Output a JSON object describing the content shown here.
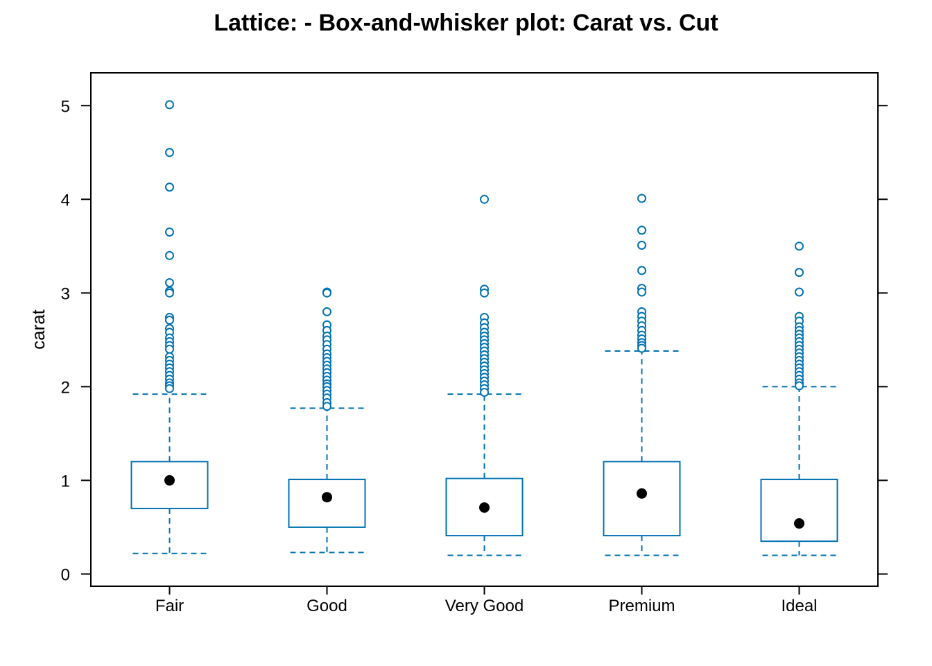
{
  "chart_data": {
    "type": "boxplot",
    "title": "Lattice: - Box-and-whisker plot: Carat vs. Cut",
    "xlabel": "",
    "ylabel": "carat",
    "ylim": [
      -0.13,
      5.35
    ],
    "yticks": [
      0,
      1,
      2,
      3,
      4,
      5
    ],
    "grid": false,
    "color": "#0072B2",
    "median_color": "#000000",
    "categories": [
      "Fair",
      "Good",
      "Very Good",
      "Premium",
      "Ideal"
    ],
    "boxes": [
      {
        "category": "Fair",
        "whisker_low": 0.22,
        "q1": 0.7,
        "median": 1.0,
        "q3": 1.2,
        "whisker_high": 1.92,
        "outliers": [
          5.01,
          4.5,
          4.13,
          3.65,
          3.4,
          3.11,
          3.02,
          3.0,
          2.74,
          2.71,
          2.62,
          2.58,
          2.52,
          2.48,
          2.44,
          2.4,
          2.32,
          2.28,
          2.24,
          2.2,
          2.16,
          2.12,
          2.08,
          2.04,
          2.01,
          1.98
        ]
      },
      {
        "category": "Good",
        "whisker_low": 0.23,
        "q1": 0.5,
        "median": 0.82,
        "q3": 1.01,
        "whisker_high": 1.77,
        "outliers": [
          3.01,
          3.0,
          2.8,
          2.66,
          2.6,
          2.54,
          2.5,
          2.45,
          2.4,
          2.35,
          2.31,
          2.27,
          2.23,
          2.19,
          2.15,
          2.11,
          2.07,
          2.03,
          2.0,
          1.96,
          1.92,
          1.88,
          1.83,
          1.79
        ]
      },
      {
        "category": "Very Good",
        "whisker_low": 0.2,
        "q1": 0.41,
        "median": 0.71,
        "q3": 1.02,
        "whisker_high": 1.92,
        "outliers": [
          4.0,
          3.04,
          3.0,
          2.74,
          2.68,
          2.63,
          2.58,
          2.54,
          2.5,
          2.46,
          2.42,
          2.38,
          2.34,
          2.3,
          2.26,
          2.22,
          2.18,
          2.14,
          2.1,
          2.06,
          2.02,
          1.98,
          1.94
        ]
      },
      {
        "category": "Premium",
        "whisker_low": 0.2,
        "q1": 0.41,
        "median": 0.86,
        "q3": 1.2,
        "whisker_high": 2.38,
        "outliers": [
          4.01,
          3.67,
          3.51,
          3.24,
          3.05,
          3.01,
          2.8,
          2.75,
          2.7,
          2.65,
          2.6,
          2.55,
          2.51,
          2.47,
          2.44,
          2.41
        ]
      },
      {
        "category": "Ideal",
        "whisker_low": 0.2,
        "q1": 0.35,
        "median": 0.54,
        "q3": 1.01,
        "whisker_high": 2.0,
        "outliers": [
          3.5,
          3.22,
          3.01,
          2.75,
          2.7,
          2.64,
          2.6,
          2.56,
          2.52,
          2.48,
          2.44,
          2.4,
          2.36,
          2.32,
          2.28,
          2.24,
          2.2,
          2.16,
          2.12,
          2.08,
          2.04,
          2.01
        ]
      }
    ]
  }
}
